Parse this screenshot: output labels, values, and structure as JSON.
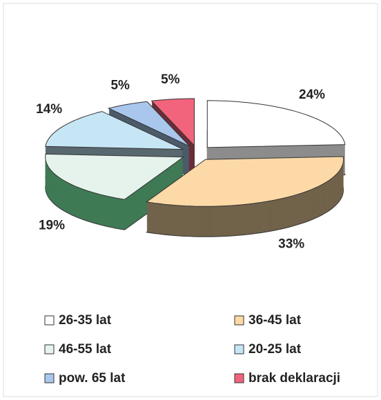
{
  "chart_data": {
    "type": "pie3d",
    "categories": [
      "26-35 lat",
      "36-45 lat",
      "46-55 lat",
      "20-25 lat",
      "pow. 65 lat",
      "brak deklaracji"
    ],
    "values": [
      24,
      33,
      19,
      14,
      5,
      5
    ],
    "value_labels": [
      "24%",
      "33%",
      "19%",
      "14%",
      "5%",
      "5%"
    ],
    "colors": [
      "#ffffff",
      "#fcd9a6",
      "#e6f3ec",
      "#c6e6f6",
      "#a9c7ec",
      "#f2647c"
    ],
    "legend": "bottom"
  }
}
